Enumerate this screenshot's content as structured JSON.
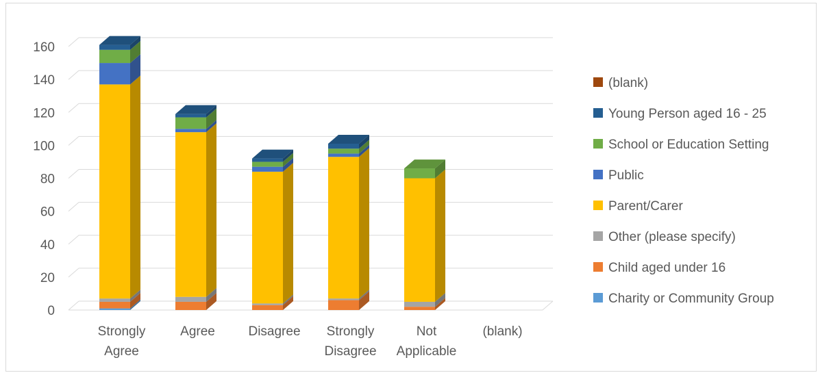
{
  "chart_data": {
    "type": "bar",
    "stacked": true,
    "three_d": true,
    "title": "",
    "xlabel": "",
    "ylabel": "",
    "ylim": [
      0,
      160
    ],
    "yticks": [
      "0",
      "20",
      "40",
      "60",
      "80",
      "100",
      "120",
      "140",
      "160"
    ],
    "grid": true,
    "legend_position": "right",
    "categories": [
      [
        "Strongly",
        "Agree"
      ],
      [
        "Agree"
      ],
      [
        "Disagree"
      ],
      [
        "Strongly",
        "Disagree"
      ],
      [
        "Not",
        "Applicable"
      ],
      [
        "(blank)"
      ]
    ],
    "series": [
      {
        "name": "Charity or Community Group",
        "color": "#5B9BD5",
        "values": [
          1,
          0,
          0,
          0,
          0,
          0
        ]
      },
      {
        "name": "Child aged under 16",
        "color": "#ED7D31",
        "values": [
          4,
          5,
          3,
          6,
          2,
          0
        ]
      },
      {
        "name": "Other (please specify)",
        "color": "#A5A5A5",
        "values": [
          2,
          3,
          1,
          1,
          3,
          0
        ]
      },
      {
        "name": "Parent/Carer",
        "color": "#FFC000",
        "values": [
          130,
          100,
          80,
          86,
          75,
          0
        ]
      },
      {
        "name": "Public",
        "color": "#4472C4",
        "values": [
          13,
          2,
          3,
          2,
          0,
          0
        ]
      },
      {
        "name": "School or Education Setting",
        "color": "#70AD47",
        "values": [
          8,
          7,
          3,
          3,
          6,
          0
        ]
      },
      {
        "name": "Young Person aged 16 - 25",
        "color": "#255E91",
        "values": [
          3,
          2,
          2,
          3,
          0,
          0
        ]
      },
      {
        "name": "(blank)",
        "color": "#9E480E",
        "values": [
          0,
          0,
          0,
          0,
          0,
          0
        ]
      }
    ]
  }
}
